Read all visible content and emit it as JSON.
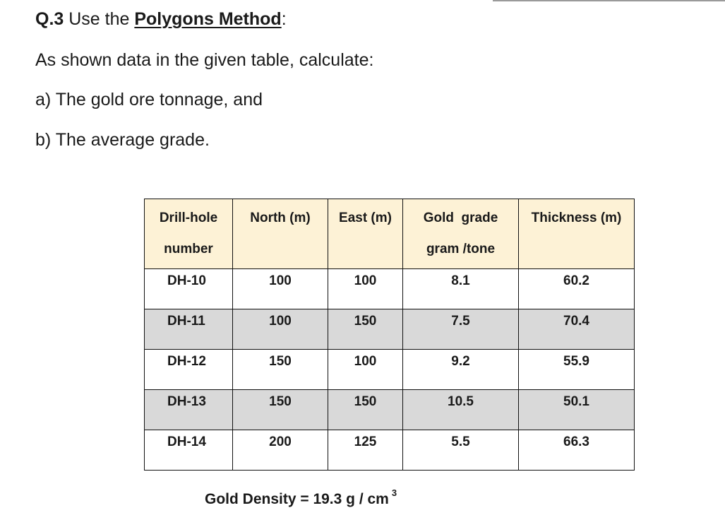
{
  "question": {
    "number": "Q.3",
    "intro": " Use the ",
    "method": "Polygons Method",
    "colon": ":",
    "instruction": "As shown data in the given table, calculate:",
    "part_a": "a) The gold ore tonnage, and",
    "part_b": "b) The average grade."
  },
  "table": {
    "headers": [
      {
        "line1": "Drill-hole",
        "line2": "number"
      },
      {
        "line1": "North (m)",
        "line2": ""
      },
      {
        "line1": "East (m)",
        "line2": ""
      },
      {
        "line1": "Gold  grade",
        "line2": "gram /tone"
      },
      {
        "line1": "Thickness (m)",
        "line2": ""
      }
    ],
    "rows": [
      [
        "DH-10",
        "100",
        "100",
        "8.1",
        "60.2"
      ],
      [
        "DH-11",
        "100",
        "150",
        "7.5",
        "70.4"
      ],
      [
        "DH-12",
        "150",
        "100",
        "9.2",
        "55.9"
      ],
      [
        "DH-13",
        "150",
        "150",
        "10.5",
        "50.1"
      ],
      [
        "DH-14",
        "200",
        "125",
        "5.5",
        "66.3"
      ]
    ],
    "header_background": "#fdf2d6",
    "shaded_row_background": "#d9d9d9"
  },
  "density": {
    "text": "Gold Density = 19.3 g / cm",
    "superscript": "3"
  }
}
